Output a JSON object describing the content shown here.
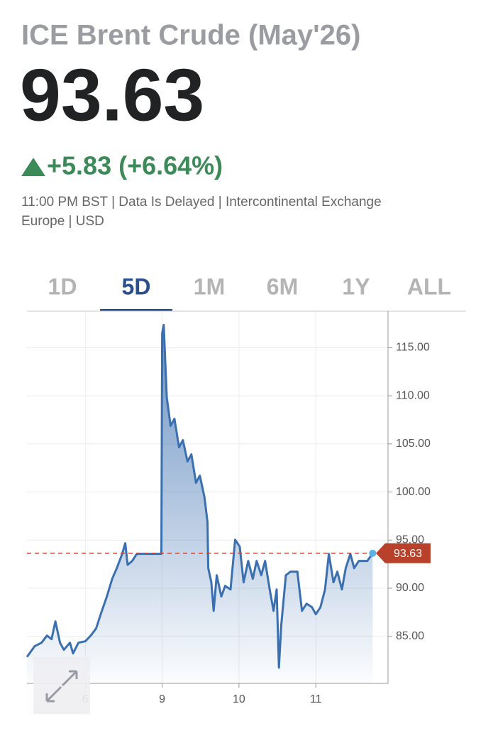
{
  "header": {
    "title": "ICE Brent Crude (May'26)",
    "price": "93.63",
    "change": "+5.83 (+6.64%)",
    "meta_line1": "11:00 PM BST | Data Is Delayed | Intercontinental Exchange",
    "meta_line2": "Europe | USD"
  },
  "tabs": [
    {
      "label": "1D",
      "active": false
    },
    {
      "label": "5D",
      "active": true
    },
    {
      "label": "1M",
      "active": false
    },
    {
      "label": "6M",
      "active": false
    },
    {
      "label": "1Y",
      "active": false
    },
    {
      "label": "ALL",
      "active": false
    }
  ],
  "chart_data": {
    "type": "line",
    "color": "#3a6fb0",
    "grid": true,
    "x": [
      0.24,
      0.34,
      0.43,
      0.5,
      0.56,
      0.61,
      0.67,
      0.72,
      0.8,
      0.84,
      0.91,
      1.0,
      1.07,
      1.14,
      1.2,
      1.28,
      1.35,
      1.41,
      1.48,
      1.52,
      1.55,
      1.61,
      1.67,
      1.74,
      1.99,
      2.0,
      2.02,
      2.06,
      2.11,
      2.16,
      2.22,
      2.27,
      2.33,
      2.38,
      2.44,
      2.49,
      2.55,
      2.59,
      2.6,
      2.64,
      2.67,
      2.71,
      2.77,
      2.82,
      2.89,
      2.95,
      3.01,
      3.06,
      3.12,
      3.18,
      3.23,
      3.29,
      3.34,
      3.4,
      3.45,
      3.49,
      3.52,
      3.55,
      3.61,
      3.67,
      3.76,
      3.82,
      3.88,
      3.95,
      4.0,
      4.06,
      4.12,
      4.17,
      4.23,
      4.28,
      4.34,
      4.39,
      4.45,
      4.5,
      4.56,
      4.61,
      4.67,
      4.74
    ],
    "values": [
      82.85,
      83.96,
      84.33,
      85.07,
      84.7,
      86.55,
      84.33,
      83.59,
      84.33,
      83.22,
      84.33,
      84.48,
      85.07,
      85.81,
      87.29,
      89.13,
      90.98,
      92.09,
      93.57,
      94.68,
      92.43,
      92.83,
      93.57,
      93.57,
      93.57,
      116.48,
      117.37,
      109.83,
      106.87,
      107.61,
      104.65,
      105.39,
      103.17,
      103.91,
      100.96,
      101.7,
      99.48,
      96.89,
      92.09,
      90.61,
      87.65,
      91.35,
      89.13,
      90.24,
      89.87,
      95.04,
      94.31,
      90.61,
      92.83,
      90.98,
      92.83,
      91.35,
      92.83,
      89.87,
      87.65,
      89.87,
      81.74,
      86.18,
      91.35,
      91.72,
      91.72,
      87.65,
      88.39,
      88.02,
      87.29,
      88.02,
      89.87,
      93.57,
      90.61,
      91.72,
      89.87,
      92.09,
      93.57,
      92.09,
      92.83,
      92.83,
      92.83,
      93.63
    ],
    "xlim": [
      0.24,
      4.94
    ],
    "ylim": [
      80.1,
      118.8
    ],
    "xticks": [
      {
        "value": 1,
        "label": "6"
      },
      {
        "value": 2,
        "label": "9"
      },
      {
        "value": 3,
        "label": "10"
      },
      {
        "value": 4,
        "label": "11"
      }
    ],
    "yticks": [
      {
        "value": 85,
        "label": "85.00"
      },
      {
        "value": 90,
        "label": "90.00"
      },
      {
        "value": 95,
        "label": "95.00"
      },
      {
        "value": 100,
        "label": "100.00"
      },
      {
        "value": 105,
        "label": "105.00"
      },
      {
        "value": 110,
        "label": "110.00"
      },
      {
        "value": 115,
        "label": "115.00"
      }
    ]
  }
}
